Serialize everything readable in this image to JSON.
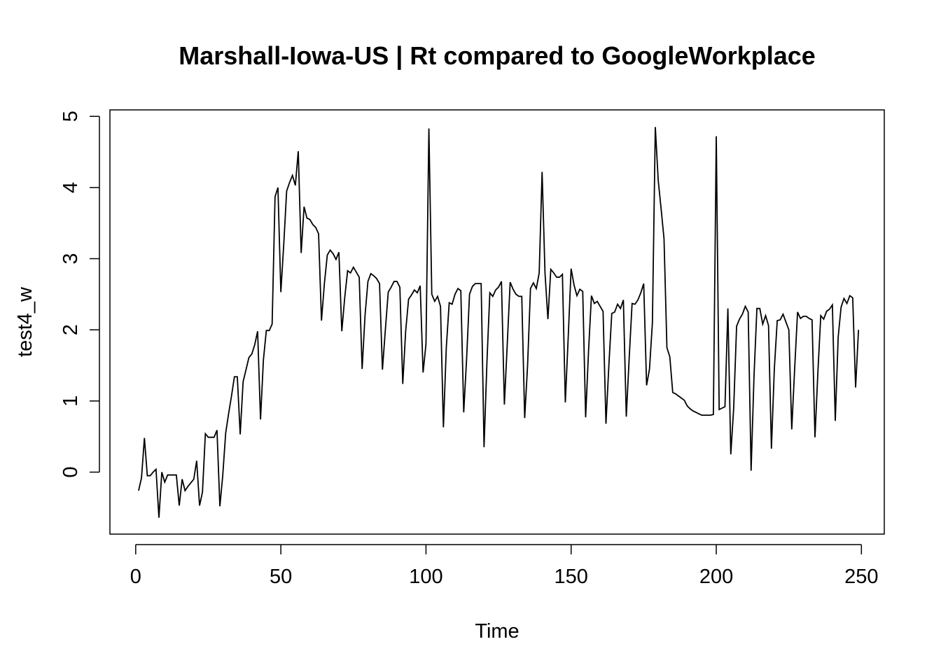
{
  "chart_data": {
    "type": "line",
    "title": "Marshall-Iowa-US | Rt compared to GoogleWorkplace",
    "xlabel": "Time",
    "ylabel": "test4_w",
    "xlim": [
      1,
      248
    ],
    "ylim": [
      -0.65,
      4.87
    ],
    "x_ticks": [
      0,
      50,
      100,
      150,
      200,
      250
    ],
    "y_ticks": [
      0,
      1,
      2,
      3,
      4,
      5
    ],
    "grid": false,
    "legend": "none",
    "line_color": "#000000",
    "series": [
      {
        "x_start": 1,
        "values": [
          -0.26,
          -0.08,
          0.48,
          -0.05,
          -0.05,
          0.0,
          0.04,
          -0.64,
          0.0,
          -0.14,
          -0.04,
          -0.04,
          -0.04,
          -0.04,
          -0.47,
          -0.1,
          -0.26,
          -0.2,
          -0.15,
          -0.1,
          0.16,
          -0.47,
          -0.28,
          0.54,
          0.49,
          0.49,
          0.49,
          0.59,
          -0.48,
          -0.04,
          0.55,
          0.82,
          1.07,
          1.34,
          1.34,
          0.53,
          1.27,
          1.44,
          1.61,
          1.66,
          1.79,
          1.98,
          0.74,
          1.58,
          1.99,
          1.99,
          2.08,
          3.87,
          4.0,
          2.53,
          3.2,
          3.95,
          4.07,
          4.17,
          4.03,
          4.51,
          3.08,
          3.73,
          3.57,
          3.55,
          3.48,
          3.44,
          3.35,
          2.13,
          2.65,
          3.05,
          3.12,
          3.07,
          2.99,
          3.09,
          1.98,
          2.45,
          2.83,
          2.8,
          2.88,
          2.81,
          2.74,
          1.45,
          2.2,
          2.68,
          2.79,
          2.76,
          2.72,
          2.65,
          1.44,
          2.0,
          2.53,
          2.6,
          2.68,
          2.68,
          2.6,
          1.24,
          1.98,
          2.43,
          2.49,
          2.56,
          2.52,
          2.62,
          1.4,
          1.8,
          4.83,
          2.5,
          2.4,
          2.47,
          2.33,
          0.63,
          1.75,
          2.38,
          2.36,
          2.5,
          2.58,
          2.55,
          0.84,
          1.6,
          2.5,
          2.61,
          2.65,
          2.65,
          2.65,
          0.35,
          1.55,
          2.52,
          2.47,
          2.56,
          2.6,
          2.68,
          0.95,
          1.8,
          2.67,
          2.57,
          2.5,
          2.47,
          2.47,
          0.76,
          1.5,
          2.58,
          2.66,
          2.58,
          2.8,
          4.22,
          2.8,
          2.15,
          2.85,
          2.8,
          2.74,
          2.74,
          2.78,
          0.98,
          1.9,
          2.86,
          2.63,
          2.48,
          2.57,
          2.54,
          0.77,
          1.7,
          2.48,
          2.37,
          2.4,
          2.33,
          2.26,
          0.68,
          1.5,
          2.23,
          2.25,
          2.36,
          2.3,
          2.42,
          0.78,
          1.6,
          2.37,
          2.36,
          2.42,
          2.52,
          2.65,
          1.22,
          1.45,
          2.1,
          4.85,
          4.1,
          3.7,
          3.28,
          1.75,
          1.62,
          1.12,
          1.1,
          1.07,
          1.04,
          1.01,
          0.93,
          0.89,
          0.86,
          0.84,
          0.82,
          0.8,
          0.8,
          0.8,
          0.8,
          0.81,
          4.72,
          0.88,
          0.9,
          0.92,
          2.3,
          0.25,
          0.9,
          2.05,
          2.15,
          2.22,
          2.33,
          2.25,
          0.02,
          1.35,
          2.3,
          2.3,
          2.08,
          2.2,
          2.06,
          0.33,
          1.45,
          2.13,
          2.14,
          2.22,
          2.11,
          2.0,
          0.6,
          1.45,
          2.25,
          2.16,
          2.19,
          2.19,
          2.16,
          2.14,
          0.49,
          1.4,
          2.2,
          2.15,
          2.26,
          2.29,
          2.35,
          0.72,
          1.9,
          2.32,
          2.44,
          2.37,
          2.48,
          2.45,
          1.19,
          2.0
        ]
      }
    ]
  }
}
